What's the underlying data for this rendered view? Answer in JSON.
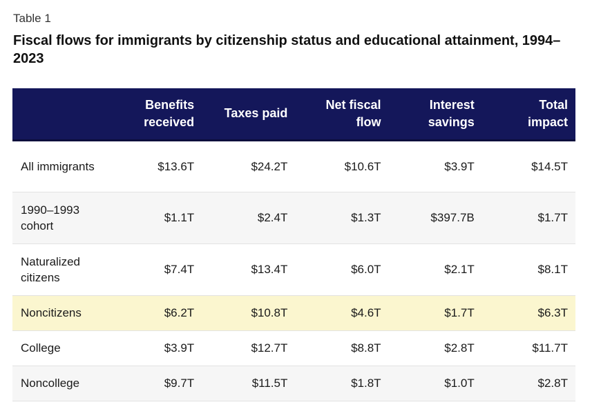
{
  "header": {
    "label": "Table 1",
    "title": "Fiscal flows for immigrants by citizenship status and educational attainment, 1994–2023"
  },
  "table": {
    "columns": [
      "Benefits received",
      "Taxes paid",
      "Net fiscal flow",
      "Interest savings",
      "Total impact"
    ],
    "rows": [
      {
        "label": "All immigrants",
        "values": [
          "$13.6T",
          "$24.2T",
          "$10.6T",
          "$3.9T",
          "$14.5T"
        ]
      },
      {
        "label": "1990–1993 cohort",
        "values": [
          "$1.1T",
          "$2.4T",
          "$1.3T",
          "$397.7B",
          "$1.7T"
        ]
      },
      {
        "label": "Naturalized citizens",
        "values": [
          "$7.4T",
          "$13.4T",
          "$6.0T",
          "$2.1T",
          "$8.1T"
        ]
      },
      {
        "label": "Noncitizens",
        "values": [
          "$6.2T",
          "$10.8T",
          "$4.6T",
          "$1.7T",
          "$6.3T"
        ]
      },
      {
        "label": "College",
        "values": [
          "$3.9T",
          "$12.7T",
          "$8.8T",
          "$2.8T",
          "$11.7T"
        ]
      },
      {
        "label": "Noncollege",
        "values": [
          "$9.7T",
          "$11.5T",
          "$1.8T",
          "$1.0T",
          "$2.8T"
        ]
      }
    ]
  }
}
